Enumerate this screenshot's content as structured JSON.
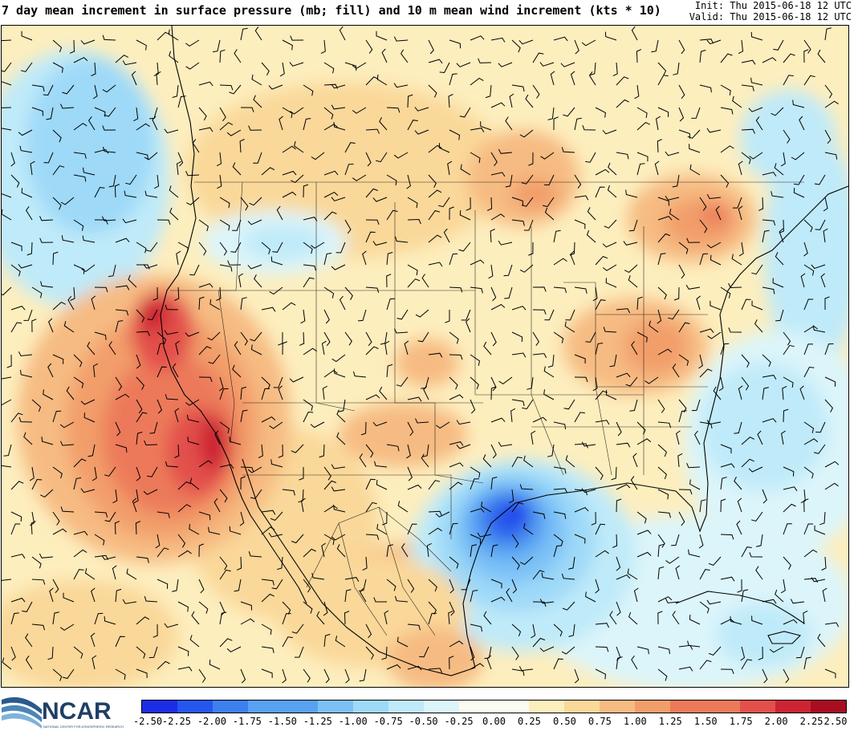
{
  "header": {
    "title": "7 day mean increment in surface pressure (mb; fill) and 10 m mean wind increment (kts * 10)",
    "init": "Init: Thu 2015-06-18 12 UTC",
    "valid": "Valid: Thu 2015-06-18 12 UTC"
  },
  "logo": {
    "text": "NCAR",
    "subtext": "NATIONAL CENTER FOR ATMOSPHERIC RESEARCH",
    "icon": "ncar-swoosh-logo"
  },
  "colorbar": {
    "tick_labels": [
      "-2.50",
      "-2.25",
      "-2.00",
      "-1.75",
      "-1.50",
      "-1.25",
      "-1.00",
      "-0.75",
      "-0.50",
      "-0.25",
      "0.00",
      "0.25",
      "0.50",
      "0.75",
      "1.00",
      "1.25",
      "1.50",
      "1.75",
      "2.00",
      "2.25",
      "2.50"
    ],
    "colors": [
      "#1b2ee6",
      "#2556ee",
      "#3c7fee",
      "#58a2f2",
      "#7cc1f6",
      "#9ed9f8",
      "#bfeaf9",
      "#dcf5fa",
      "#fbfcf0",
      "#fdeebe",
      "#fad89a",
      "#f6bb82",
      "#f29e6b",
      "#ec7a5a",
      "#e3504b",
      "#cc2433",
      "#a80d22"
    ]
  },
  "map_layers": {
    "fill_variable": "surface pressure increment (mb)",
    "vector_variable": "10 m wind increment barbs",
    "features": [
      "coastlines",
      "us-state-borders",
      "country-borders",
      "mexican-states"
    ]
  }
}
